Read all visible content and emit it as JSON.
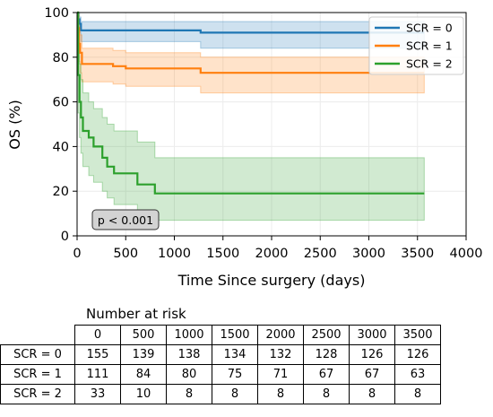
{
  "chart_data": {
    "type": "line",
    "subtype": "kaplan-meier",
    "xlabel": "Time Since surgery (days)",
    "ylabel": "OS (%)",
    "xlim": [
      0,
      4000
    ],
    "ylim": [
      0,
      100
    ],
    "xticks": [
      0,
      500,
      1000,
      1500,
      2000,
      2500,
      3000,
      3500,
      4000
    ],
    "yticks": [
      0,
      20,
      40,
      60,
      80,
      100
    ],
    "grid": true,
    "legend_position": "top-right",
    "annotation": "p < 0.001",
    "series": [
      {
        "name": "SCR = 0",
        "color": "#1f77b4",
        "steps": [
          [
            0,
            100
          ],
          [
            10,
            97
          ],
          [
            25,
            95
          ],
          [
            40,
            92
          ],
          [
            1270,
            91
          ],
          [
            3570,
            91
          ]
        ],
        "ci_upper": [
          [
            0,
            100
          ],
          [
            10,
            100
          ],
          [
            25,
            98
          ],
          [
            40,
            96
          ],
          [
            1270,
            96
          ],
          [
            3570,
            96
          ]
        ],
        "ci_lower": [
          [
            0,
            100
          ],
          [
            10,
            94
          ],
          [
            25,
            91
          ],
          [
            40,
            87
          ],
          [
            1270,
            84
          ],
          [
            3570,
            84
          ]
        ]
      },
      {
        "name": "SCR = 1",
        "color": "#ff7f0e",
        "steps": [
          [
            0,
            100
          ],
          [
            10,
            93
          ],
          [
            20,
            86
          ],
          [
            30,
            82
          ],
          [
            50,
            77
          ],
          [
            370,
            76
          ],
          [
            500,
            75
          ],
          [
            1270,
            73
          ],
          [
            3570,
            73
          ]
        ],
        "ci_upper": [
          [
            0,
            100
          ],
          [
            10,
            99
          ],
          [
            20,
            95
          ],
          [
            30,
            90
          ],
          [
            50,
            84
          ],
          [
            370,
            83
          ],
          [
            500,
            82
          ],
          [
            1270,
            80
          ],
          [
            3570,
            80
          ]
        ],
        "ci_lower": [
          [
            0,
            100
          ],
          [
            10,
            86
          ],
          [
            20,
            78
          ],
          [
            30,
            73
          ],
          [
            50,
            69
          ],
          [
            370,
            68
          ],
          [
            500,
            67
          ],
          [
            1270,
            64
          ],
          [
            3570,
            64
          ]
        ]
      },
      {
        "name": "SCR = 2",
        "color": "#2ca02c",
        "steps": [
          [
            0,
            100
          ],
          [
            10,
            72
          ],
          [
            25,
            60
          ],
          [
            40,
            53
          ],
          [
            60,
            47
          ],
          [
            120,
            44
          ],
          [
            170,
            40
          ],
          [
            260,
            35
          ],
          [
            310,
            31
          ],
          [
            380,
            28
          ],
          [
            620,
            23
          ],
          [
            800,
            19
          ],
          [
            3570,
            19
          ]
        ],
        "ci_upper": [
          [
            0,
            100
          ],
          [
            10,
            88
          ],
          [
            25,
            77
          ],
          [
            40,
            70
          ],
          [
            60,
            64
          ],
          [
            120,
            60
          ],
          [
            170,
            57
          ],
          [
            260,
            53
          ],
          [
            310,
            50
          ],
          [
            380,
            47
          ],
          [
            620,
            42
          ],
          [
            800,
            35
          ],
          [
            3570,
            35
          ]
        ],
        "ci_lower": [
          [
            0,
            100
          ],
          [
            10,
            55
          ],
          [
            25,
            44
          ],
          [
            40,
            37
          ],
          [
            60,
            31
          ],
          [
            120,
            27
          ],
          [
            170,
            24
          ],
          [
            260,
            20
          ],
          [
            310,
            17
          ],
          [
            380,
            14
          ],
          [
            620,
            11
          ],
          [
            800,
            7
          ],
          [
            3570,
            7
          ]
        ]
      }
    ]
  },
  "risk_table": {
    "title": "Number at risk",
    "times": [
      "0",
      "500",
      "1000",
      "1500",
      "2000",
      "2500",
      "3000",
      "3500"
    ],
    "rows": [
      {
        "label": "SCR = 0",
        "values": [
          "155",
          "139",
          "138",
          "134",
          "132",
          "128",
          "126",
          "126"
        ]
      },
      {
        "label": "SCR = 1",
        "values": [
          "111",
          "84",
          "80",
          "75",
          "71",
          "67",
          "67",
          "63"
        ]
      },
      {
        "label": "SCR = 2",
        "values": [
          "33",
          "10",
          "8",
          "8",
          "8",
          "8",
          "8",
          "8"
        ]
      }
    ]
  }
}
